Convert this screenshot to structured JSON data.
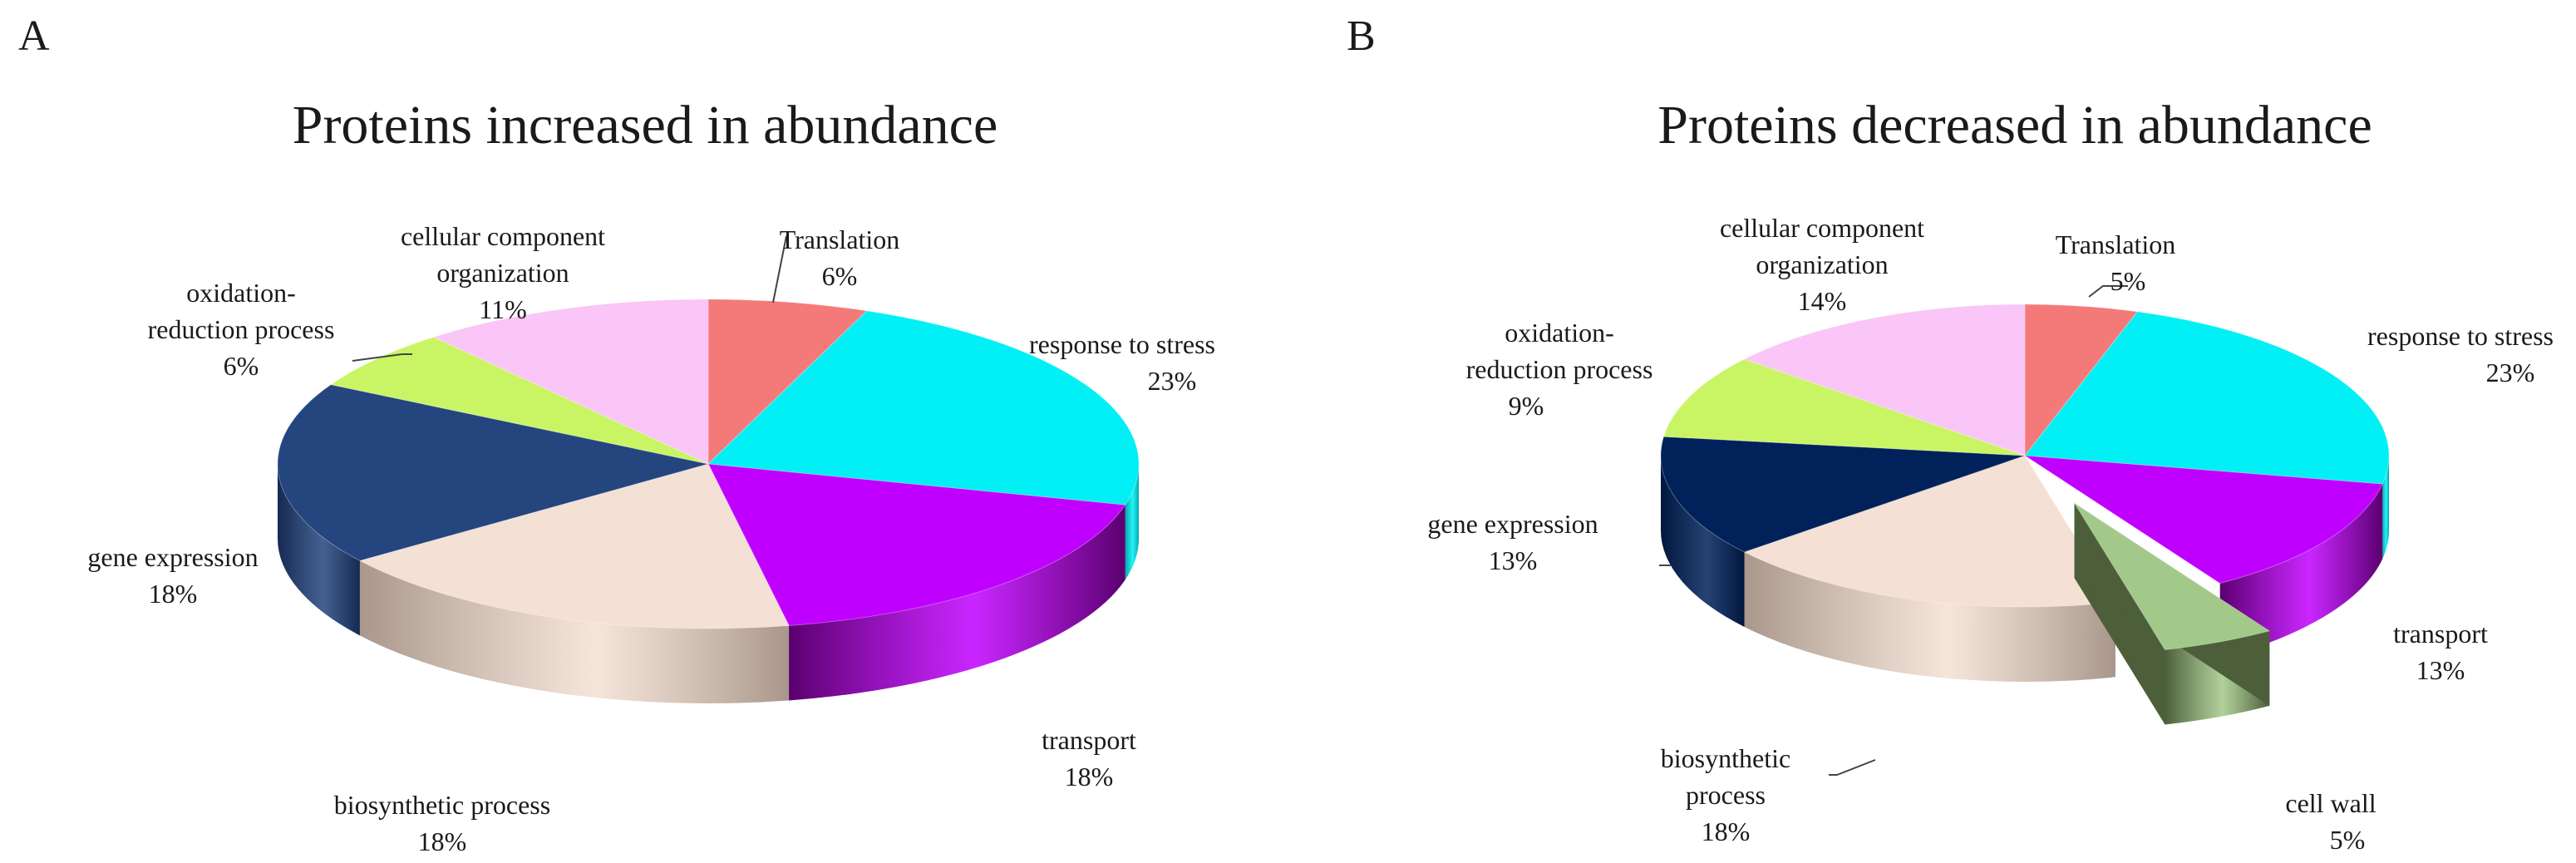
{
  "chart_data": [
    {
      "type": "pie",
      "panel": "A",
      "title": "Proteins increased in abundance",
      "slices": [
        {
          "label": "Translation",
          "value": 6,
          "pct": "6%",
          "color": "#f47a7a",
          "side_color": "#b55555"
        },
        {
          "label": "response to stress",
          "value": 23,
          "pct": "23%",
          "color": "#00f0f5",
          "side_color": "#00a8ad"
        },
        {
          "label": "transport",
          "value": 18,
          "pct": "18%",
          "color": "#c000ff",
          "side_color": "#5a006e"
        },
        {
          "label": "biosynthetic process",
          "value": 18,
          "pct": "18%",
          "color": "#f4e0d4",
          "side_color": "#a8978a"
        },
        {
          "label": "gene expression",
          "value": 18,
          "pct": "18%",
          "color": "#24457e",
          "side_color": "#152a52"
        },
        {
          "label": "oxidation-reduction process",
          "label_lines": [
            "oxidation-",
            "reduction process"
          ],
          "value": 6,
          "pct": "6%",
          "color": "#c9f564",
          "side_color": "#8fb040"
        },
        {
          "label": "cellular component organization",
          "label_lines": [
            "cellular component",
            "organization"
          ],
          "value": 11,
          "pct": "11%",
          "color": "#f9c6f7",
          "side_color": "#c89bc4"
        }
      ]
    },
    {
      "type": "pie",
      "panel": "B",
      "title": "Proteins decreased in abundance",
      "slices": [
        {
          "label": "Translation",
          "value": 5,
          "pct": "5%",
          "color": "#f47a7a",
          "side_color": "#b55555"
        },
        {
          "label": "response to stress",
          "value": 23,
          "pct": "23%",
          "color": "#00f0f5",
          "side_color": "#00a8ad"
        },
        {
          "label": "transport",
          "value": 13,
          "pct": "13%",
          "color": "#c000ff",
          "side_color": "#5a006e"
        },
        {
          "label": "cell wall",
          "value": 5,
          "pct": "5%",
          "color": "#a3c98a",
          "side_color": "#4d5e3a",
          "exploded": true
        },
        {
          "label": "biosynthetic process",
          "label_lines": [
            "biosynthetic",
            "process"
          ],
          "value": 18,
          "pct": "18%",
          "color": "#f4e0d4",
          "side_color": "#a8978a"
        },
        {
          "label": "gene expression",
          "value": 13,
          "pct": "13%",
          "color": "#00215a",
          "side_color": "#00163d"
        },
        {
          "label": "oxidation-reduction process",
          "label_lines": [
            "oxidation-",
            "reduction process"
          ],
          "value": 9,
          "pct": "9%",
          "color": "#c9f564",
          "side_color": "#8fb040"
        },
        {
          "label": "cellular component organization",
          "label_lines": [
            "cellular component",
            "organization"
          ],
          "value": 14,
          "pct": "14%",
          "color": "#f9c6f7",
          "side_color": "#c89bc4"
        }
      ]
    }
  ]
}
